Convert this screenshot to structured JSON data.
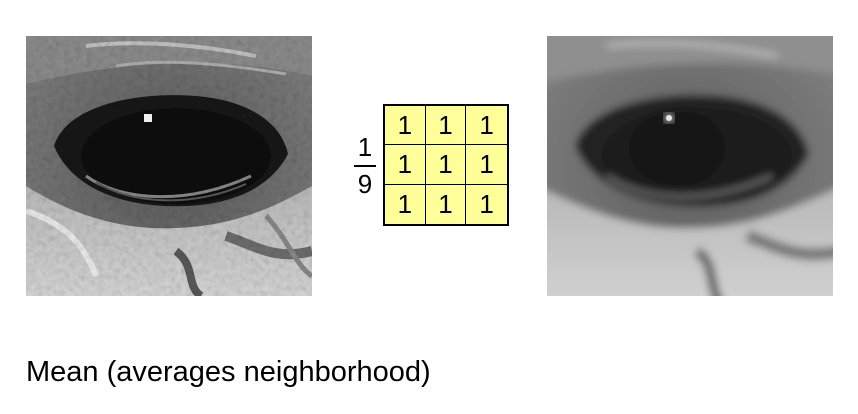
{
  "fraction": {
    "numerator": "1",
    "denominator": "9"
  },
  "kernel": {
    "rows": [
      [
        "1",
        "1",
        "1"
      ],
      [
        "1",
        "1",
        "1"
      ],
      [
        "1",
        "1",
        "1"
      ]
    ]
  },
  "caption": "Mean (averages neighborhood)"
}
